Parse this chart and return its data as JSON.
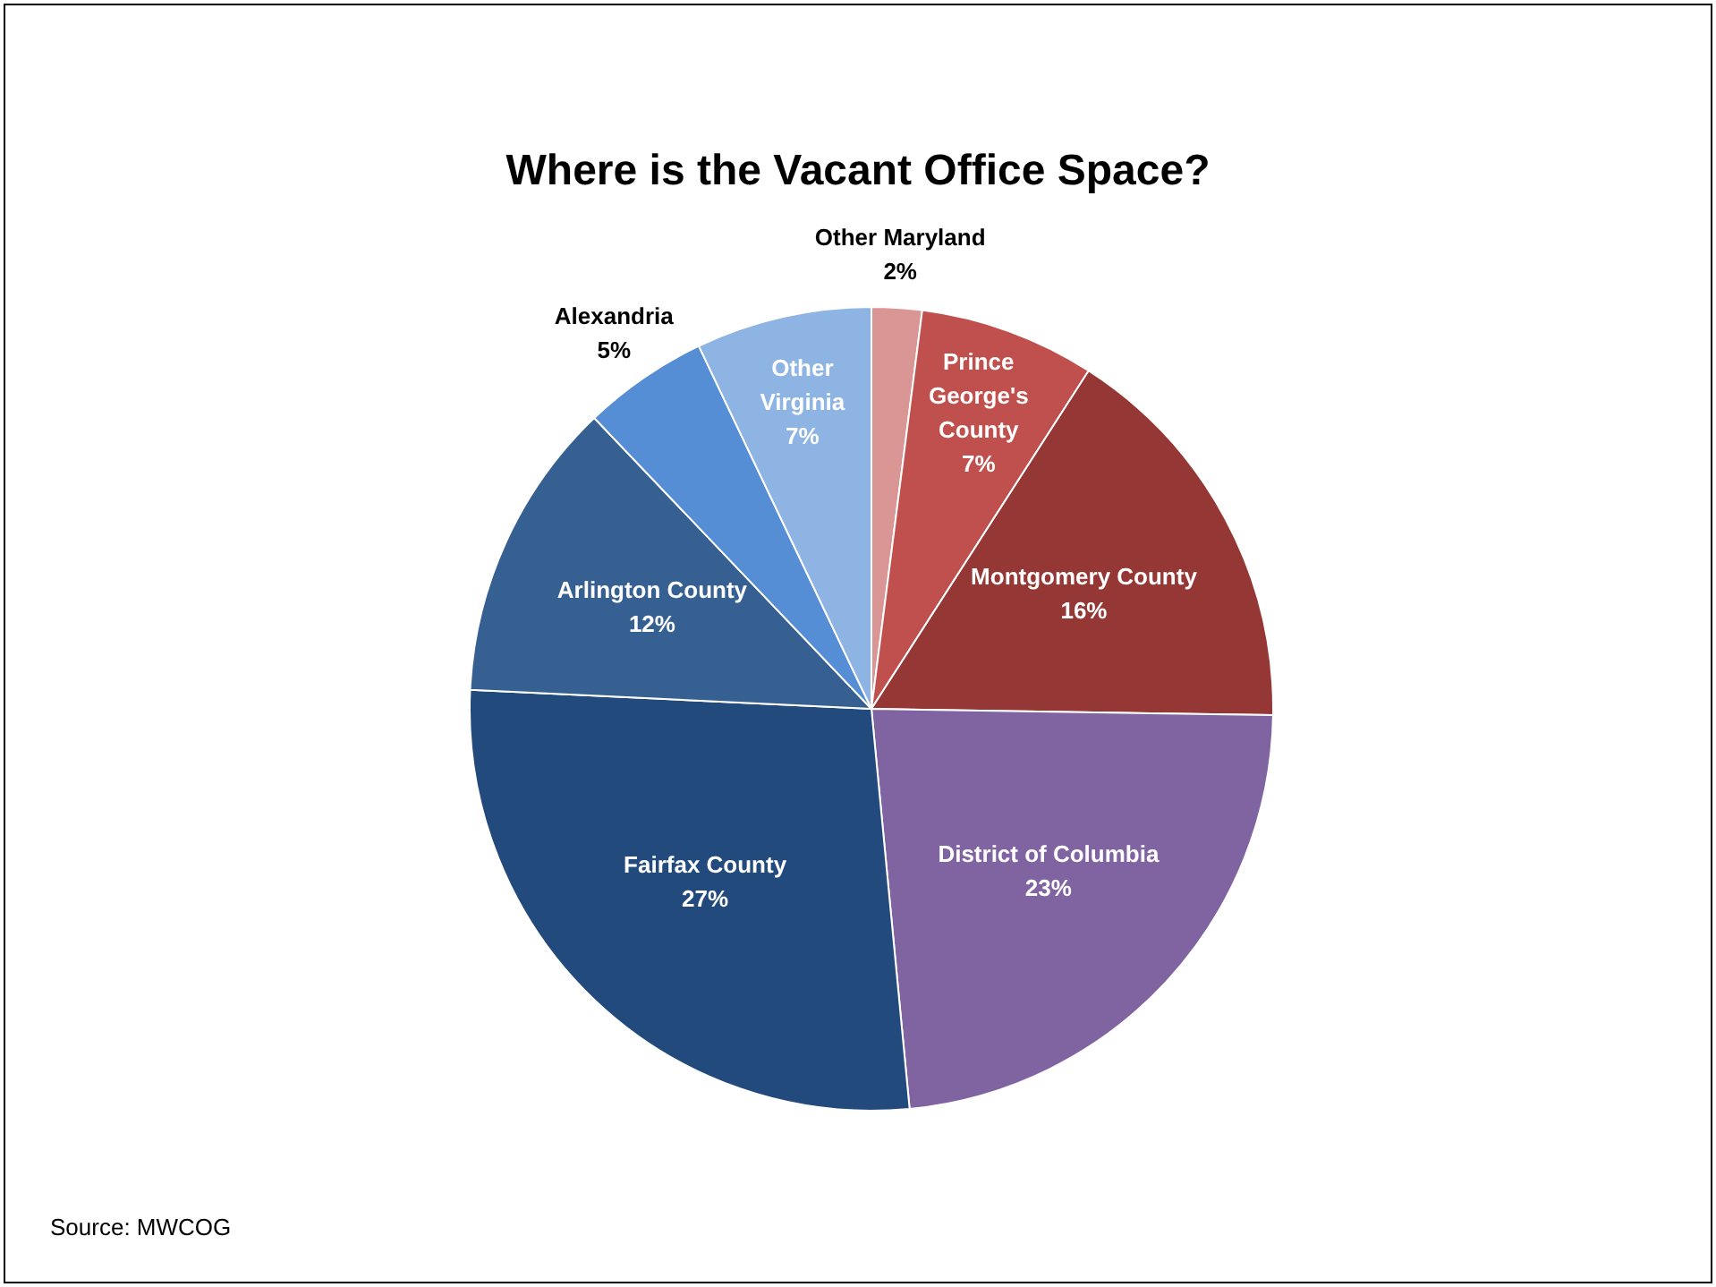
{
  "chart_data": {
    "type": "pie",
    "title": "Where is the Vacant Office Space?",
    "categories": [
      "Other Maryland",
      "Prince George's County",
      "Montgomery County",
      "District of Columbia",
      "Fairfax County",
      "Arlington County",
      "Alexandria",
      "Other Virginia"
    ],
    "values": [
      2,
      7,
      16,
      23,
      27,
      12,
      5,
      7
    ],
    "colors": [
      "#d99694",
      "#c0504d",
      "#953735",
      "#8064a2",
      "#234a7c",
      "#376092",
      "#558ed5",
      "#8eb4e3"
    ],
    "value_labels": [
      "2%",
      "7%",
      "16%",
      "23%",
      "27%",
      "12%",
      "5%",
      "7%"
    ],
    "legend": false,
    "annotations": [
      "Source: MWCOG"
    ]
  }
}
